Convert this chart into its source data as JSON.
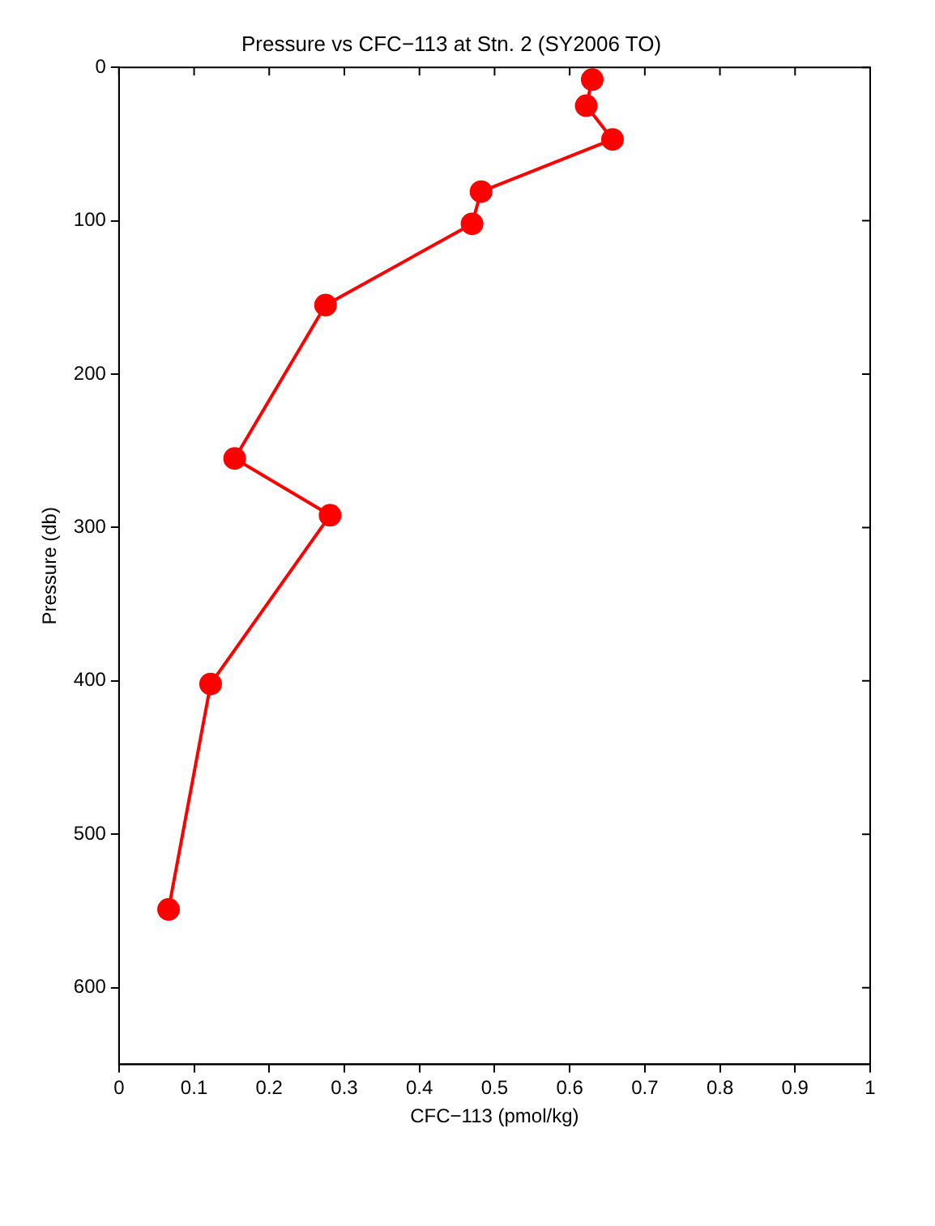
{
  "chart_data": {
    "type": "line",
    "title": "Pressure vs CFC−113 at Stn. 2 (SY2006 TO)",
    "xlabel": "CFC−113 (pmol/kg)",
    "ylabel": "Pressure (db)",
    "x": [
      0.63,
      0.622,
      0.657,
      0.482,
      0.47,
      0.275,
      0.154,
      0.281,
      0.122,
      0.066
    ],
    "series": [
      {
        "color": "#ff0000",
        "values": [
          8,
          25,
          47,
          81,
          102,
          155,
          255,
          292,
          402,
          549
        ]
      }
    ],
    "xlim": [
      0,
      1
    ],
    "xticks": [
      0,
      0.1,
      0.2,
      0.3,
      0.4,
      0.5,
      0.6,
      0.7,
      0.8,
      0.9,
      1
    ],
    "ylim": [
      650,
      0
    ],
    "yticks": [
      0,
      100,
      200,
      300,
      400,
      500,
      600
    ],
    "grid": false,
    "legend": false,
    "marker": "circle",
    "line_style": "solid"
  }
}
